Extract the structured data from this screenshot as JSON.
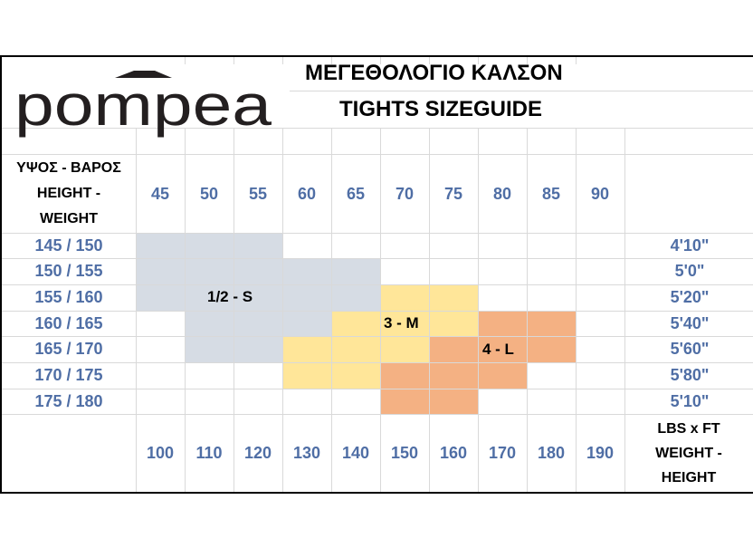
{
  "brand": {
    "name": "pompea"
  },
  "header": {
    "title_gr": "ΜΕΓΕΘΟΛΟΓΙΟ ΚΑΛΣΟΝ",
    "title_en": "TIGHTS SIZEGUIDE"
  },
  "corner_top": [
    "ΥΨΟΣ - ΒΑΡΟΣ",
    "HEIGHT -",
    "WEIGHT"
  ],
  "corner_bottom": [
    "LBS x FT",
    "WEIGHT -",
    "HEIGHT"
  ],
  "weights_kg": [
    "45",
    "50",
    "55",
    "60",
    "65",
    "70",
    "75",
    "80",
    "85",
    "90"
  ],
  "weights_lbs": [
    "100",
    "110",
    "120",
    "130",
    "140",
    "150",
    "160",
    "170",
    "180",
    "190"
  ],
  "heights_cm": [
    "145 / 150",
    "150 / 155",
    "155 / 160",
    "160 / 165",
    "165 / 170",
    "170 / 175",
    "175 / 180"
  ],
  "heights_ft": [
    "4'10\"",
    "5'0\"",
    "5'20\"",
    "5'40\"",
    "5'60\"",
    "5'80\"",
    "5'10\""
  ],
  "sizes": [
    {
      "label": "1/2 - S",
      "color": "#d6dce4"
    },
    {
      "label": "3 - M",
      "color": "#ffe699"
    },
    {
      "label": "4 - L",
      "color": "#f4b183"
    }
  ]
}
